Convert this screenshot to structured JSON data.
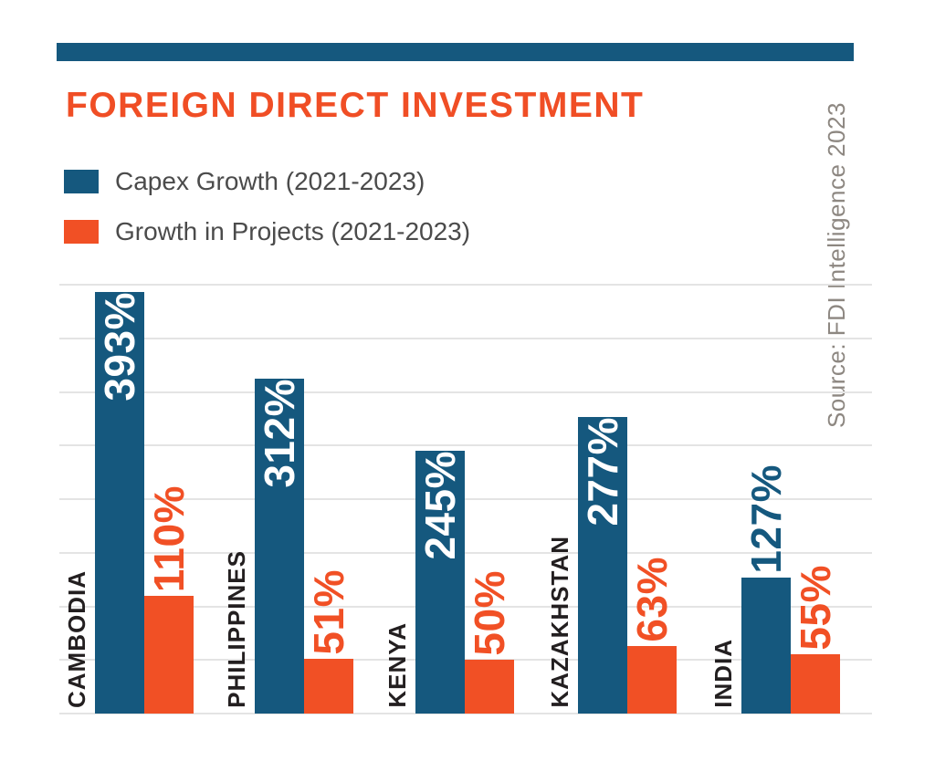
{
  "header": {
    "title": "FOREIGN DIRECT INVESTMENT",
    "title_color": "#F04E25",
    "top_bar_color": "#15587E"
  },
  "source_note": "Source: FDI Intelligence 2023",
  "palette": {
    "capex_blue": "#15587E",
    "projects_orange": "#F15025",
    "gridline": "#E4E4E4",
    "country_label_text": "#231F20",
    "legend_text": "#4B4B4B",
    "source_text": "#8D8781",
    "background": "#FFFFFF",
    "value_label_on_bar": "#FFFFFF"
  },
  "chart_data": {
    "type": "bar",
    "title": "FOREIGN DIRECT INVESTMENT",
    "categories": [
      "CAMBODIA",
      "PHILIPPINES",
      "KENYA",
      "KAZAKHSTAN",
      "INDIA"
    ],
    "series": [
      {
        "name": "Capex Growth (2021-2023)",
        "color": "#15587E",
        "values": [
          393,
          312,
          245,
          277,
          127
        ]
      },
      {
        "name": "Growth in Projects (2021-2023)",
        "color": "#F15025",
        "values": [
          110,
          51,
          50,
          63,
          55
        ]
      }
    ],
    "value_suffix": "%",
    "ylim": [
      0,
      400
    ],
    "gridline_step": 50,
    "grid": true,
    "legend_position": "top-left",
    "bar_label_orientation": "vertical",
    "source": "Source: FDI Intelligence 2023"
  }
}
